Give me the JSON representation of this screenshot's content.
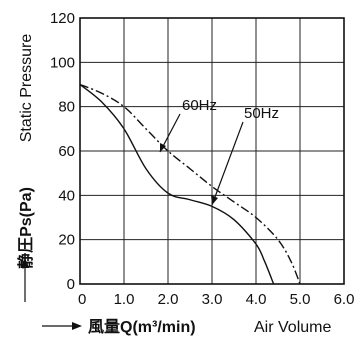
{
  "chart_data": {
    "type": "line",
    "xlabel": "風量Q(m³/min)",
    "xlabel_suffix": "Air Volume",
    "ylabel": "静圧Ps(Pa)",
    "ylabel_suffix": "Static Pressure",
    "xlim": [
      0,
      6.0
    ],
    "ylim": [
      0,
      120
    ],
    "x_ticks": [
      "0",
      "1.0",
      "2.0",
      "3.0",
      "4.0",
      "5.0",
      "6.0"
    ],
    "y_ticks": [
      "0",
      "20",
      "40",
      "60",
      "80",
      "100",
      "120"
    ],
    "grid": true,
    "series": [
      {
        "name": "60Hz",
        "style": "dashdot",
        "color": "#111111",
        "x": [
          0,
          0.5,
          1.0,
          1.5,
          2.0,
          2.5,
          3.0,
          3.5,
          4.0,
          4.5,
          4.8,
          5.0
        ],
        "y": [
          90,
          86,
          80,
          70,
          60,
          52,
          44,
          37,
          30,
          20,
          10,
          0
        ]
      },
      {
        "name": "50Hz",
        "style": "solid",
        "color": "#111111",
        "x": [
          0,
          0.5,
          1.0,
          1.5,
          2.0,
          2.5,
          3.0,
          3.5,
          4.0,
          4.2,
          4.4
        ],
        "y": [
          90,
          82,
          70,
          52,
          41,
          38,
          35,
          29,
          18,
          10,
          0
        ]
      }
    ]
  }
}
